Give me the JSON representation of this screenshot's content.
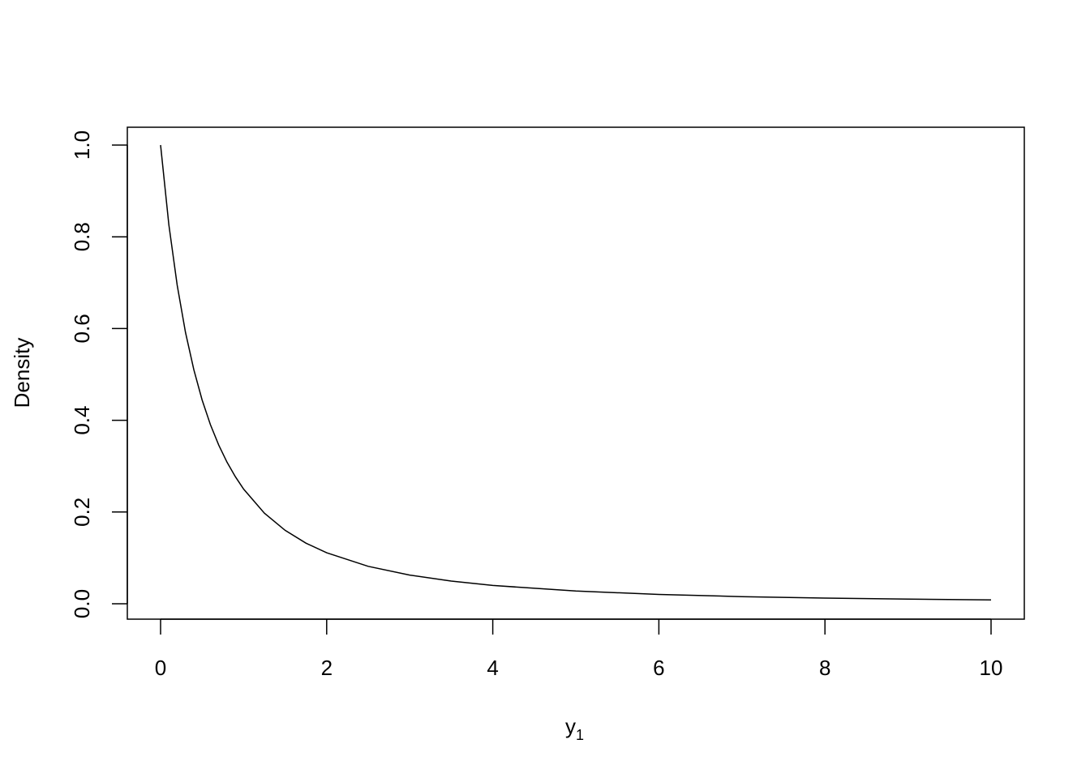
{
  "chart_data": {
    "type": "line",
    "title": "",
    "xlabel": "y",
    "xlabel_subscript": "1",
    "ylabel": "Density",
    "xlim": [
      0,
      10
    ],
    "ylim": [
      0,
      1.0
    ],
    "grid": false,
    "x_ticks": [
      "0",
      "2",
      "4",
      "6",
      "8",
      "10"
    ],
    "y_ticks": [
      "0.0",
      "0.2",
      "0.4",
      "0.6",
      "0.8",
      "1.0"
    ],
    "line_color": "#000000",
    "series": [
      {
        "x": [
          0,
          0.1,
          0.2,
          0.3,
          0.4,
          0.5,
          0.6,
          0.7,
          0.8,
          0.9,
          1,
          1.25,
          1.5,
          1.75,
          2,
          2.5,
          3,
          3.5,
          4,
          5,
          6,
          7,
          8,
          9,
          10
        ],
        "y": [
          1,
          0.8264,
          0.6944,
          0.5917,
          0.5102,
          0.4444,
          0.3906,
          0.346,
          0.3086,
          0.277,
          0.25,
          0.1975,
          0.16,
          0.1322,
          0.1111,
          0.0816,
          0.0625,
          0.0494,
          0.04,
          0.0278,
          0.0204,
          0.0156,
          0.0123,
          0.01,
          0.0083
        ]
      }
    ]
  }
}
